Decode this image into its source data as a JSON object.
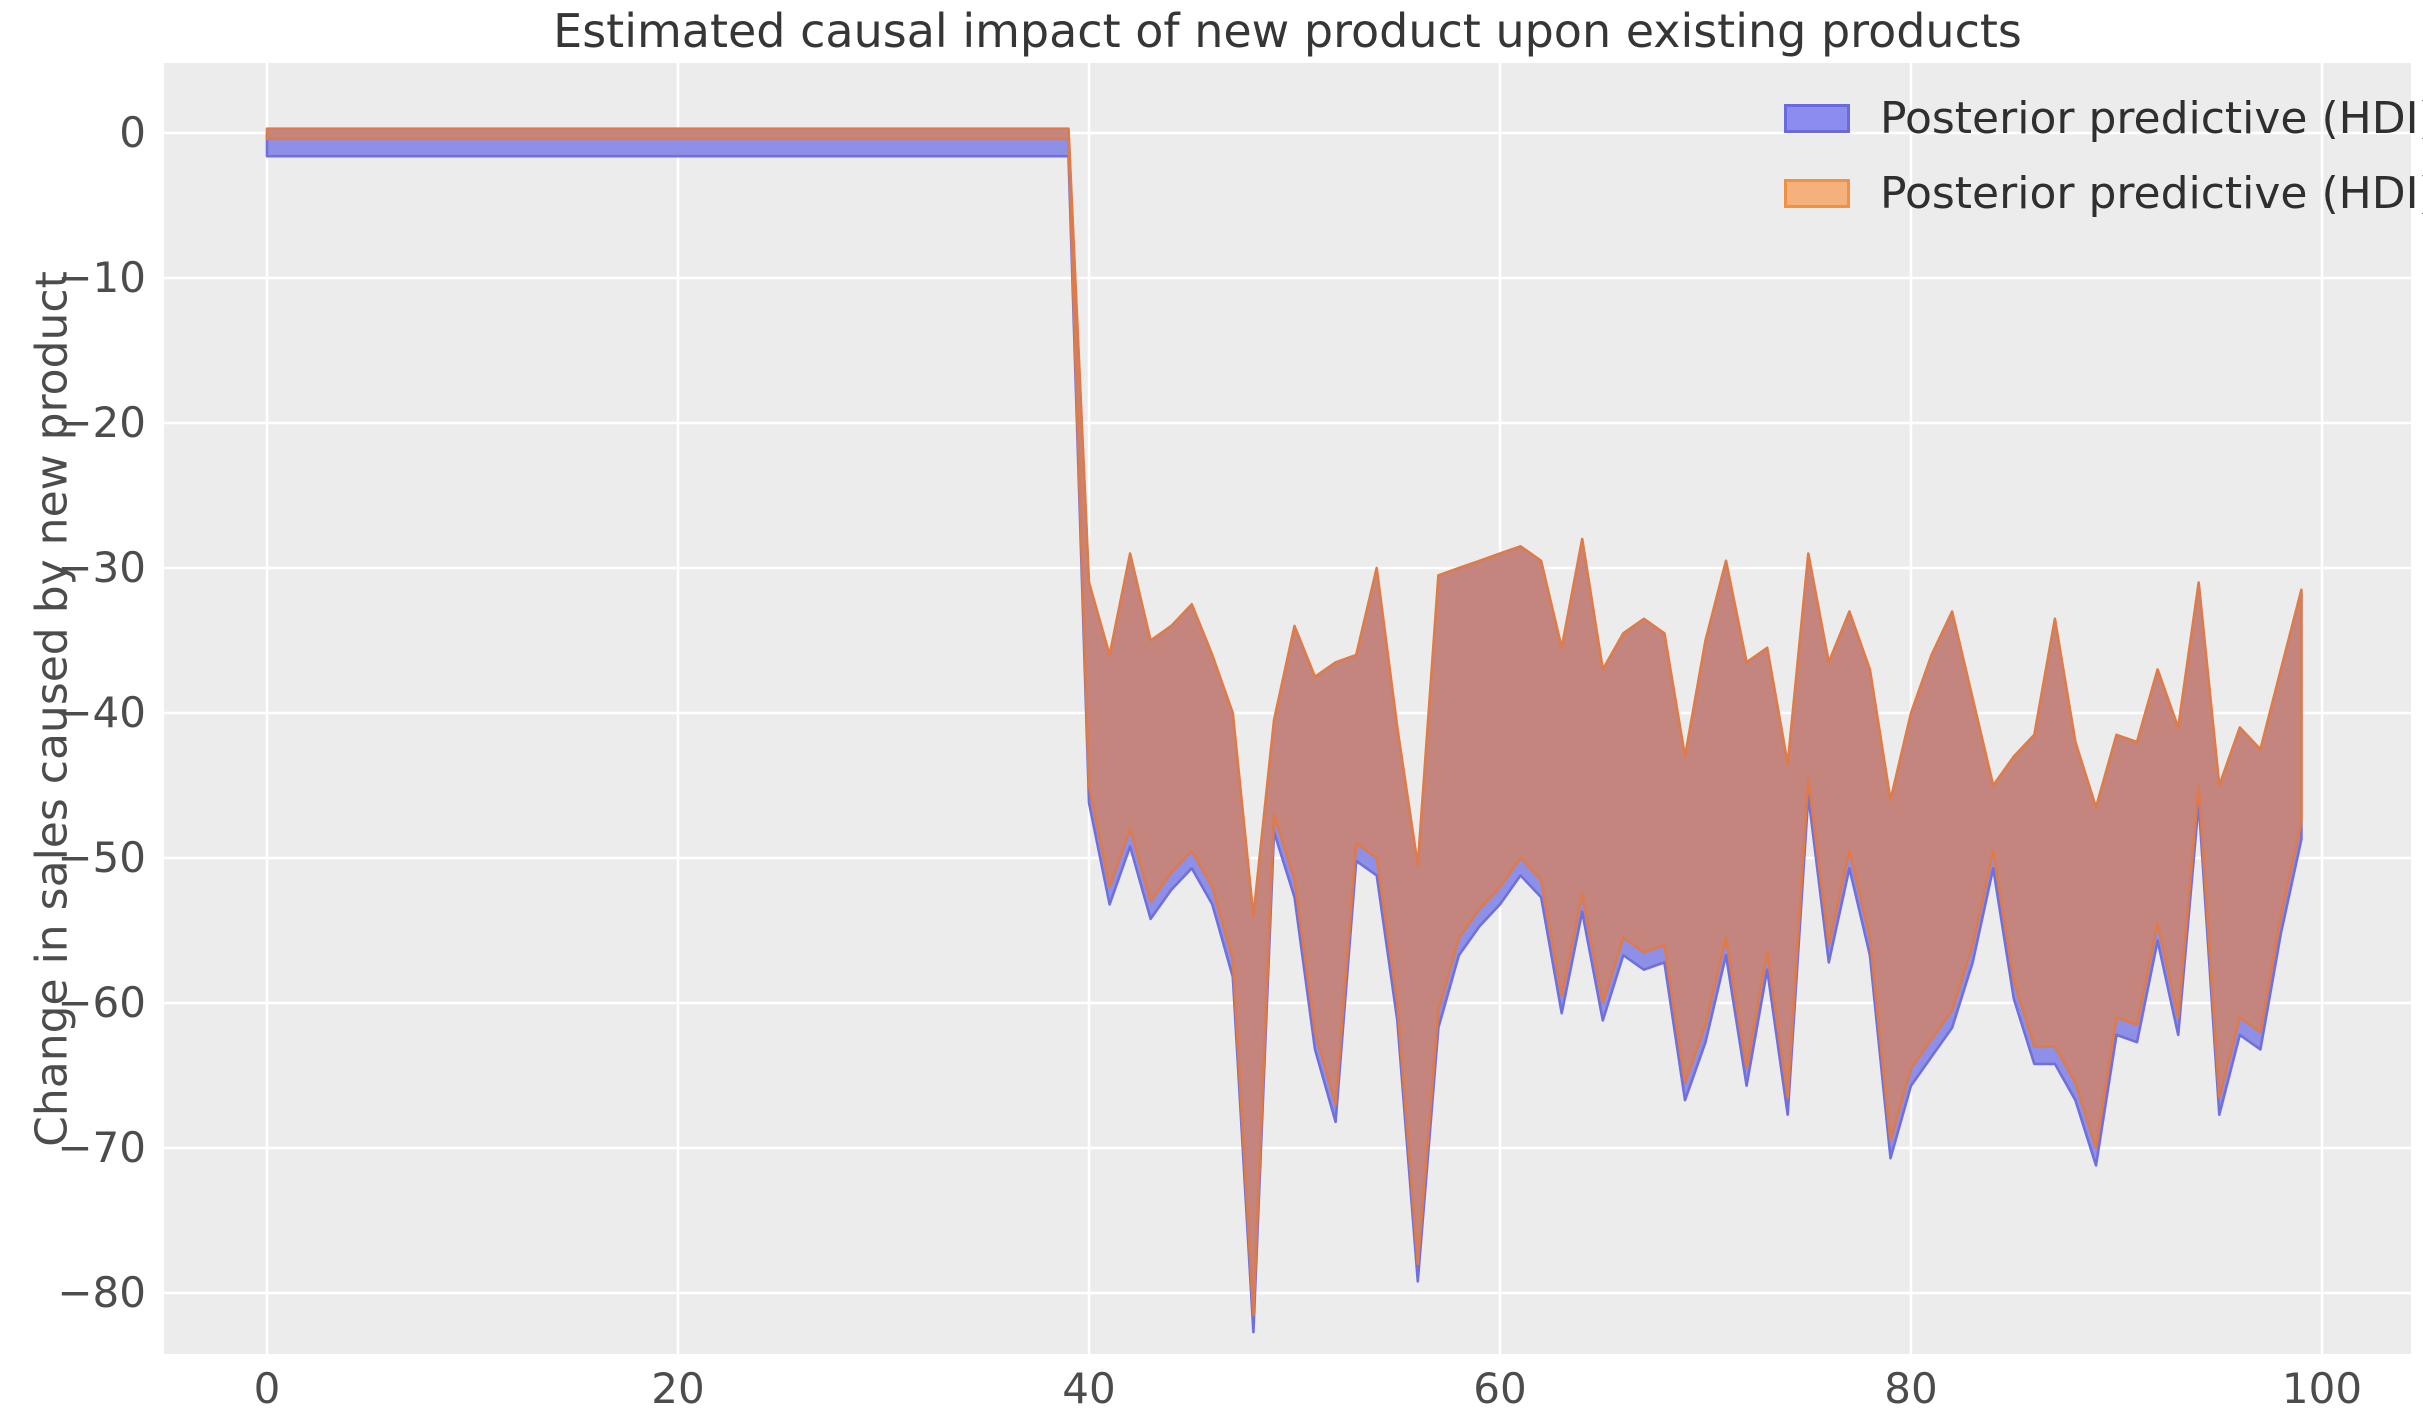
{
  "title": "Estimated causal impact of new product upon existing products",
  "ylabel": "Change in sales caused by new product",
  "legend": {
    "entries": [
      {
        "label": "Posterior predictive (HDI)",
        "fill": "#8c8cee",
        "border": "#6a6ae0"
      },
      {
        "label": "Posterior predictive (HDI)",
        "fill": "#f5b17b",
        "border": "#ef9243"
      }
    ]
  },
  "colors": {
    "figure_background": "#ffffff",
    "plot_background": "#ececec",
    "gridline": "#ffffff",
    "band_interior": "#c3857e",
    "orange_edge": "#de7b49",
    "blue_fill": "#8e8fe7",
    "blue_edge": "#6f70dd",
    "title_text": "#363636",
    "tick_text": "#4c4c4c"
  },
  "chart_data": {
    "type": "area",
    "title": "Estimated causal impact of new product upon existing products",
    "xlabel": "",
    "ylabel": "Change in sales caused by new product",
    "xlim": [
      -5.0,
      104.4
    ],
    "ylim": [
      -84.2,
      4.8
    ],
    "x_ticks": [
      0,
      20,
      40,
      60,
      80,
      100
    ],
    "y_ticks": [
      0,
      -10,
      -20,
      -30,
      -40,
      -50,
      -60,
      -70,
      -80
    ],
    "grid": true,
    "legend_position": "upper right",
    "treatment_index": 40,
    "x_start": 0,
    "band": {
      "description": "HDI band: flat at ~0 for x=0..39, then negative impact band for x=40..99",
      "pre_upper": 0.3,
      "pre_lower": -0.4,
      "upper": [
        -31,
        -36,
        -29,
        -35,
        -34,
        -32.5,
        -36,
        -40,
        -54,
        -40.5,
        -34,
        -37.5,
        -36.5,
        -36,
        -30,
        -41,
        -50.5,
        -30.5,
        -30,
        -29.5,
        -29,
        -28.5,
        -29.5,
        -35.5,
        -28,
        -37,
        -34.5,
        -33.5,
        -34.5,
        -43,
        -35,
        -29.5,
        -36.5,
        -35.5,
        -43.5,
        -29,
        -36.5,
        -33,
        -37,
        -46,
        -40,
        -36,
        -33,
        -39,
        -45,
        -43,
        -41.5,
        -33.5,
        -42,
        -46.5,
        -41.5,
        -42,
        -37,
        -41,
        -31,
        -45,
        -41,
        -42.5,
        -37,
        -31.5
      ],
      "lower": [
        -45,
        -52,
        -48,
        -53,
        -51,
        -49.5,
        -52,
        -57,
        -81.5,
        -47,
        -51.5,
        -62,
        -67,
        -49,
        -50,
        -60,
        -78,
        -60.5,
        -55.5,
        -53.5,
        -52,
        -50,
        -51.5,
        -59.5,
        -52.5,
        -60,
        -55.5,
        -56.5,
        -56,
        -65.5,
        -61.5,
        -55.5,
        -64.5,
        -56.5,
        -66.5,
        -44.5,
        -56,
        -49.5,
        -55.5,
        -69.5,
        -64.5,
        -62.5,
        -60.5,
        -56,
        -49.5,
        -58.5,
        -63,
        -63,
        -65.5,
        -70,
        -61,
        -61.5,
        -54.5,
        -61,
        -45,
        -66.5,
        -61,
        -62,
        -54,
        -47.5
      ]
    },
    "series": [
      {
        "name": "Posterior predictive (HDI)",
        "role": "hdi-band-blue",
        "fill": "#8e8fe7",
        "edge": "#6f70dd",
        "upper_offset": -0.3,
        "lower_offset": -1.2
      },
      {
        "name": "Posterior predictive (HDI)",
        "role": "hdi-band-orange",
        "fill": "#c3857e",
        "edge": "#de7b49",
        "upper_offset": 0,
        "lower_offset": 0
      }
    ]
  }
}
